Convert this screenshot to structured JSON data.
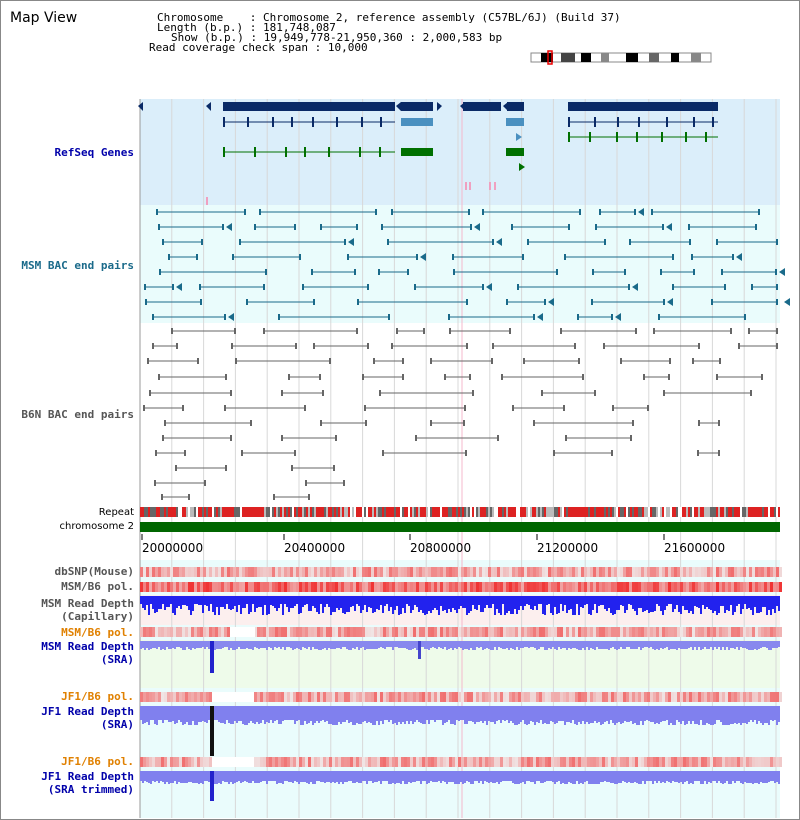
{
  "app": {
    "title": "Map View"
  },
  "header": {
    "chromosome_label": "Chromosome",
    "chromosome_value": "Chromosome 2, reference assembly (C57BL/6J) (Build 37)",
    "length_label": "Length (b.p.)",
    "length_value": "181,748,087",
    "show_label": "Show (b.p.)",
    "show_value": "19,949,778-21,950,360 : 2,000,583 bp",
    "coverage_label": "Read coverage check span",
    "coverage_value": "10,000"
  },
  "tracks": {
    "refseq": "RefSeq Genes",
    "msm_bac": "MSM BAC end pairs",
    "b6n_bac": "B6N BAC end pairs",
    "repeat": "Repeat",
    "chromosome": "chromosome 2",
    "dbsnp": "dbSNP(Mouse)",
    "msm_b6_pol_1": "MSM/B6 pol.",
    "msm_read_depth_cap_1": "MSM Read Depth",
    "msm_read_depth_cap_2": "(Capillary)",
    "msm_b6_pol_2": "MSM/B6 pol.",
    "msm_read_depth_sra_1": "MSM Read Depth",
    "msm_read_depth_sra_2": "(SRA)",
    "jf1_b6_pol_1": "JF1/B6 pol.",
    "jf1_read_depth_sra_1": "JF1 Read Depth",
    "jf1_read_depth_sra_2": "(SRA)",
    "jf1_b6_pol_2": "JF1/B6 pol.",
    "jf1_read_depth_trim_1": "JF1 Read Depth",
    "jf1_read_depth_trim_2": "(SRA trimmed)"
  },
  "axis": {
    "ticks": [
      "20000000",
      "20400000",
      "20800000",
      "21200000",
      "21600000"
    ]
  },
  "colors": {
    "refseq_bg": "#dbeefa",
    "bac_bg": "#eafcfc",
    "gene_dark": "#0a2a66",
    "gene_light": "#4a90c0",
    "gene_green": "#007000",
    "msm_bac": "#1a6a8a",
    "b6n_bac": "#666666",
    "chromosome": "#006600",
    "label_blue": "#0000aa",
    "label_teal": "#1a6a8a",
    "label_orange": "#e08000",
    "label_gray": "#555555"
  }
}
